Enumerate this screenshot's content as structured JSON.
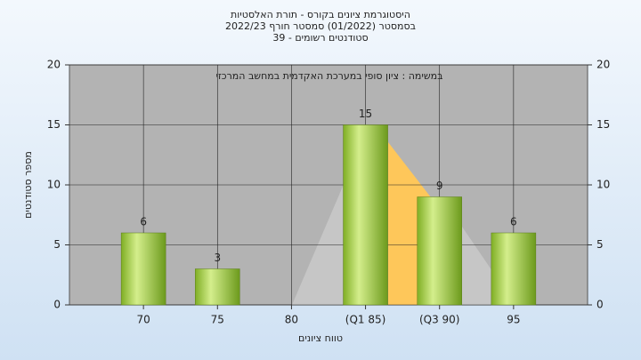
{
  "chart_data": {
    "type": "bar",
    "title": [
      "היסטוגרמת ציונים בקורס - תורת האלסטיות",
      "בסמסטר  (01/2022)  סמסטר חורף 2022/23",
      "סטודנטים רשומים - 39"
    ],
    "annotation": "במשימה : ציון סופי במערכת האקדמית במחשב המרכזי",
    "x_label": "טווח ציונים",
    "y_label": "מספר סטודנטים",
    "categories": [
      "70",
      "75",
      "80",
      "(Q1 85)",
      "(Q3 90)",
      "95"
    ],
    "values": [
      6,
      3,
      0,
      15,
      9,
      6
    ],
    "color": "#9ccc3c",
    "ylim": [
      0,
      20
    ],
    "yticks": [
      0,
      5,
      10,
      15,
      20
    ],
    "grid": true
  }
}
